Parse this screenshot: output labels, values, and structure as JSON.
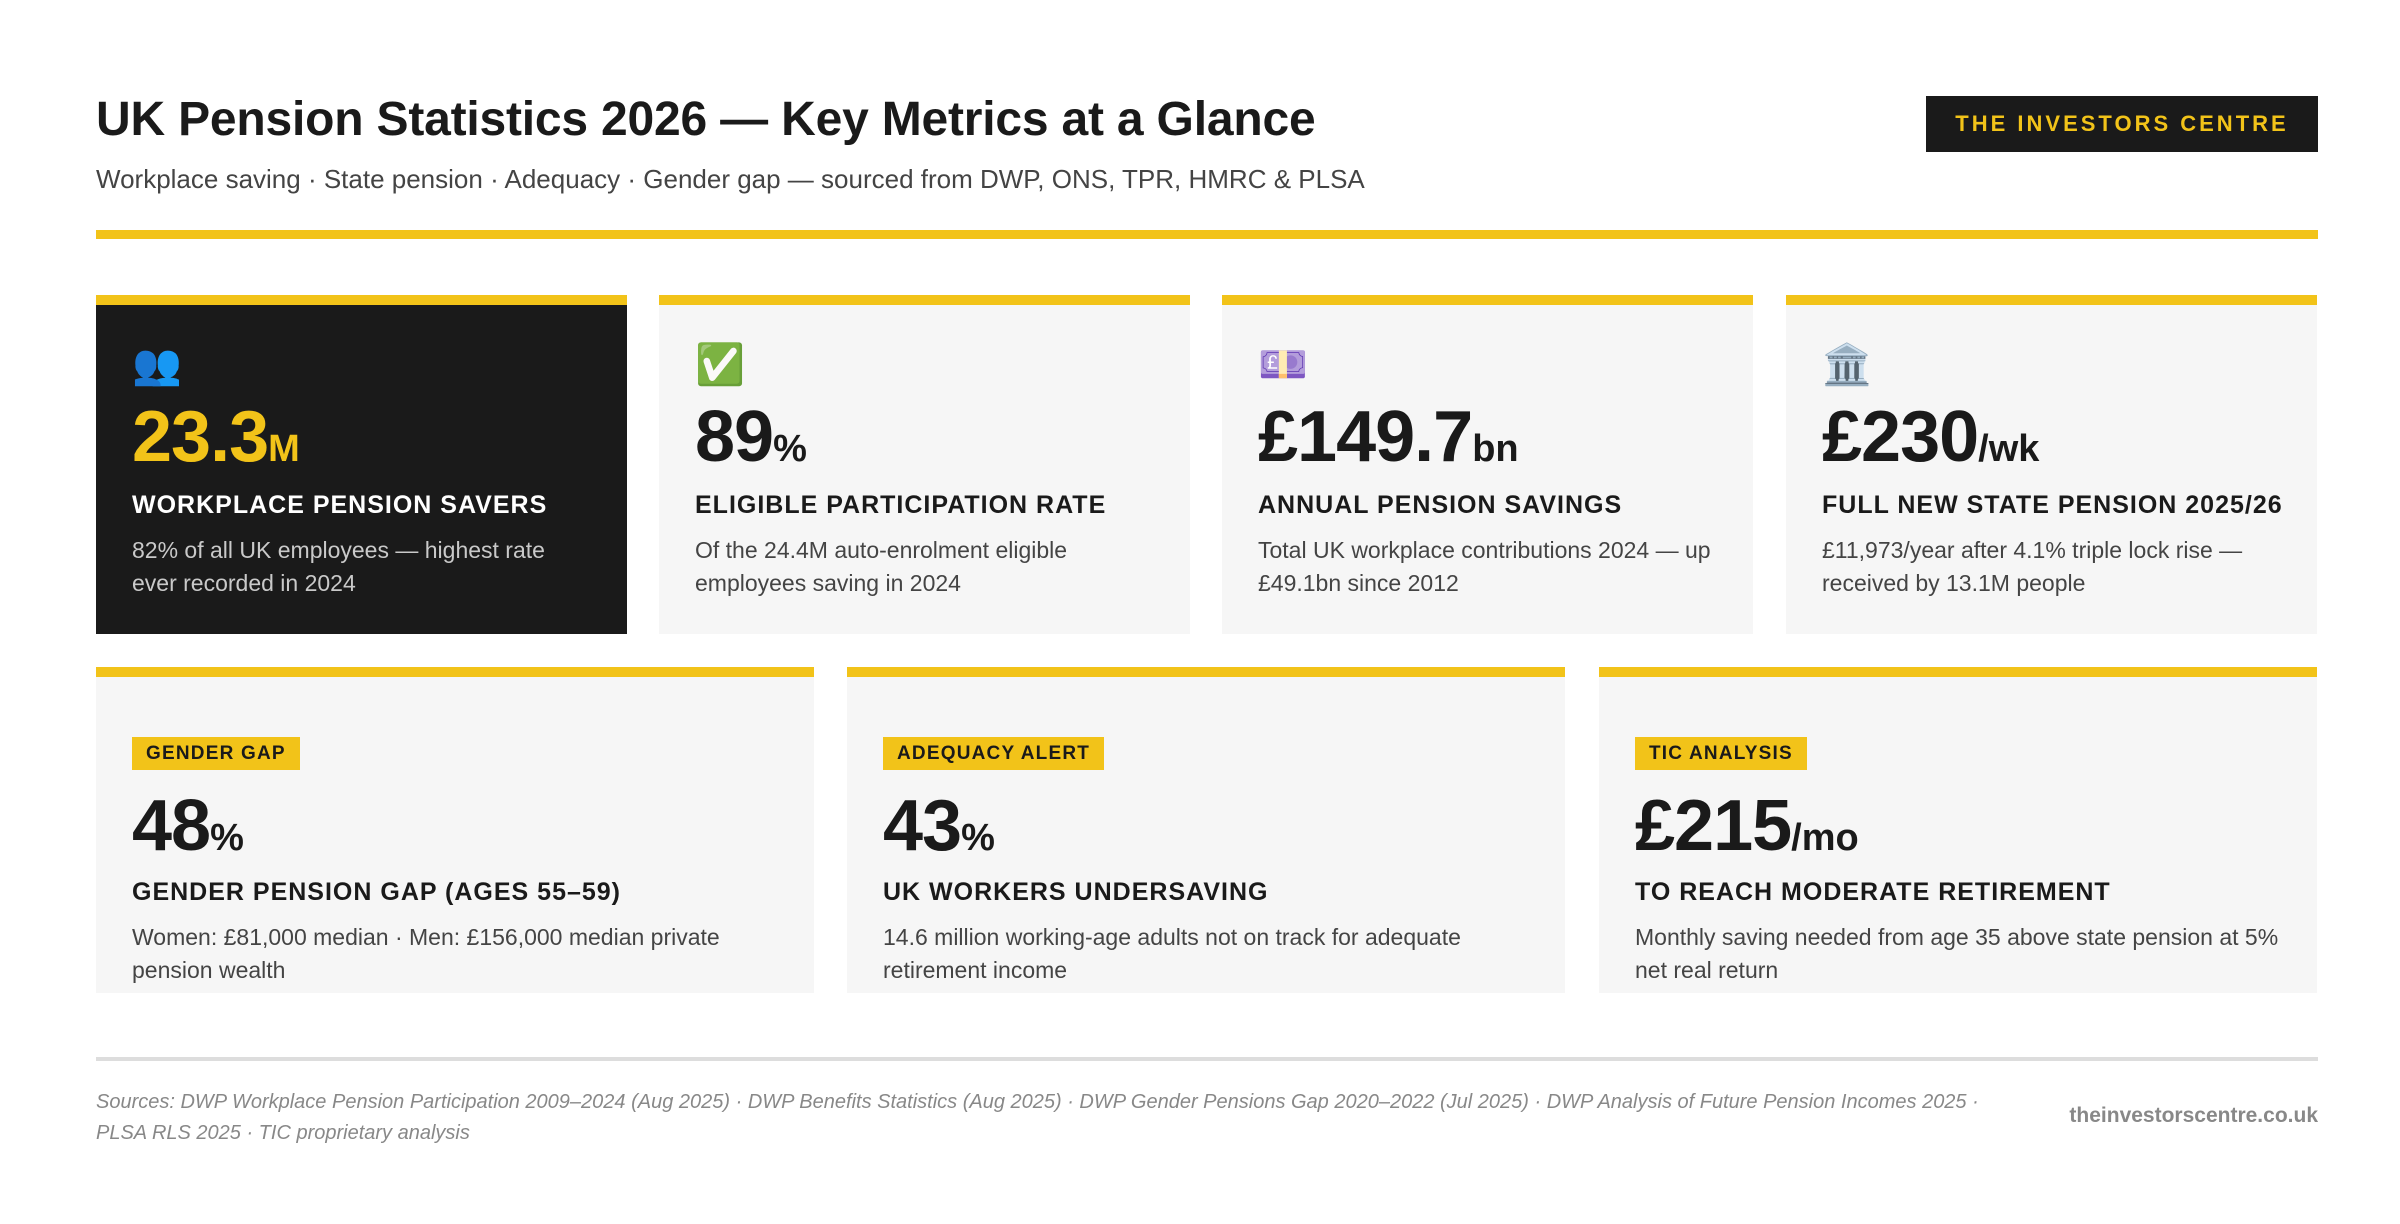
{
  "header": {
    "title": "UK Pension Statistics 2026 — Key Metrics at a Glance",
    "subtitle": "Workplace saving · State pension · Adequacy · Gender gap — sourced from DWP, ONS, TPR, HMRC & PLSA",
    "brand": "THE INVESTORS CENTRE"
  },
  "colors": {
    "accent": "#f2c319",
    "dark": "#1a1a1a",
    "card_bg": "#f6f6f6",
    "muted_text": "#888888"
  },
  "top_metrics": [
    {
      "icon": "people-icon",
      "icon_glyph": "👥",
      "value": "23.3",
      "unit": "M",
      "label": "WORKPLACE PENSION SAVERS",
      "description": "82% of all UK employees — highest rate ever recorded in 2024"
    },
    {
      "icon": "check-icon",
      "icon_glyph": "✅",
      "value": "89",
      "unit": "%",
      "label": "ELIGIBLE PARTICIPATION RATE",
      "description": "Of the 24.4M auto-enrolment eligible employees saving in 2024"
    },
    {
      "icon": "pound-banknote-icon",
      "icon_glyph": "💷",
      "value": "£149.7",
      "unit": "bn",
      "label": "ANNUAL PENSION SAVINGS",
      "description": "Total UK workplace contributions 2024 — up £49.1bn since 2012"
    },
    {
      "icon": "bank-building-icon",
      "icon_glyph": "🏛️",
      "value": "£230",
      "unit": "/wk",
      "label": "FULL NEW STATE PENSION 2025/26",
      "description": "£11,973/year after 4.1% triple lock rise — received by 13.1M people"
    }
  ],
  "bottom_metrics": [
    {
      "tag": "GENDER GAP",
      "value": "48",
      "unit": "%",
      "label": "GENDER PENSION GAP (AGES 55–59)",
      "description": "Women: £81,000 median · Men: £156,000 median private pension wealth"
    },
    {
      "tag": "ADEQUACY ALERT",
      "value": "43",
      "unit": "%",
      "label": "UK WORKERS UNDERSAVING",
      "description": "14.6 million working-age adults not on track for adequate retirement income"
    },
    {
      "tag": "TIC ANALYSIS",
      "value": "£215",
      "unit": "/mo",
      "label": "TO REACH MODERATE RETIREMENT",
      "description": "Monthly saving needed from age 35 above state pension at 5% net real return"
    }
  ],
  "footer": {
    "sources": "Sources: DWP Workplace Pension Participation 2009–2024 (Aug 2025) · DWP Benefits Statistics (Aug 2025) · DWP Gender Pensions Gap 2020–2022 (Jul 2025) · DWP Analysis of Future Pension Incomes 2025 · PLSA RLS 2025 · TIC proprietary analysis",
    "site": "theinvestorscentre.co.uk"
  }
}
